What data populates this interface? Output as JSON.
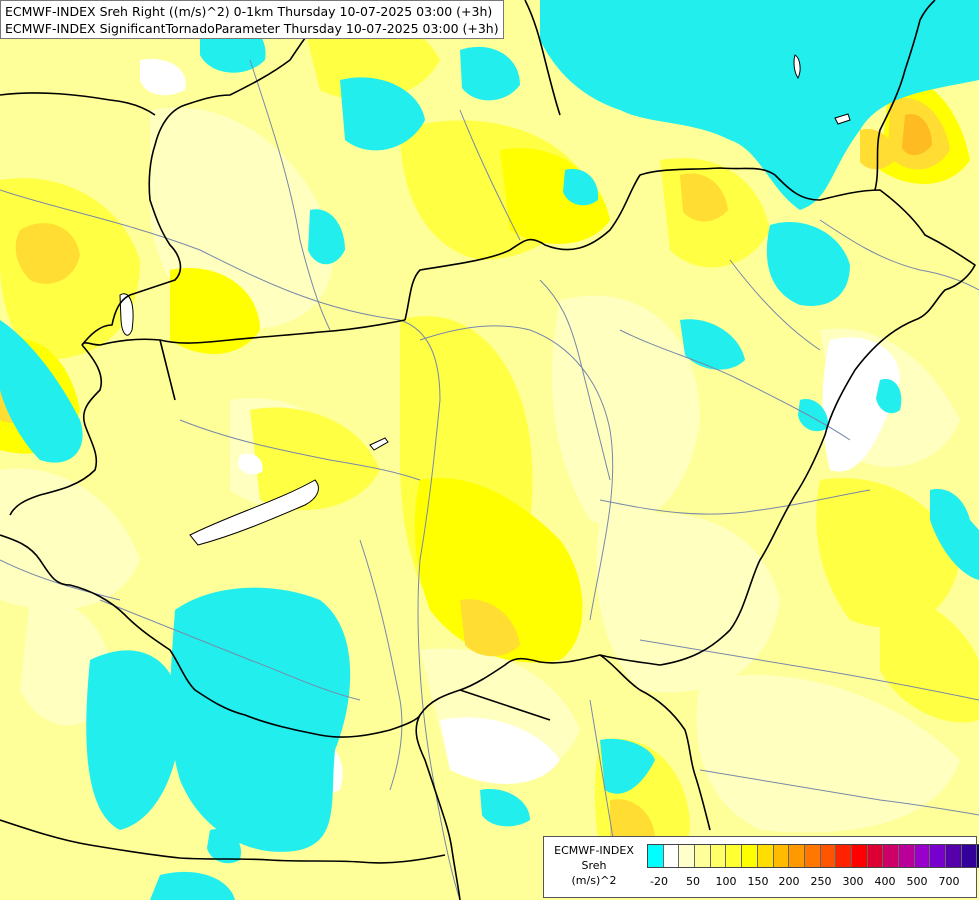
{
  "titles": {
    "line1": "ECMWF-INDEX Sreh Right ((m/s)^2) 0-1km Thursday 10-07-2025 03:00 (+3h)",
    "line2": "ECMWF-INDEX SignificantTornadoParameter Thursday 10-07-2025 03:00 (+3h)"
  },
  "legend": {
    "model": "ECMWF-INDEX",
    "parameter": "Sreh",
    "unit": "(m/s)^2",
    "swatches": [
      "#00ffff",
      "#ffffff",
      "#ffffcc",
      "#ffff99",
      "#ffff66",
      "#ffff33",
      "#ffff00",
      "#ffdd00",
      "#ffbb00",
      "#ff9900",
      "#ff7700",
      "#ff5500",
      "#ff2200",
      "#ff0000",
      "#dd0033",
      "#cc0066",
      "#bb0099",
      "#9900cc",
      "#7700cc",
      "#5500aa",
      "#330099",
      "#110066"
    ],
    "tick_labels": [
      "-20",
      "50",
      "100",
      "150",
      "200",
      "250",
      "300",
      "400",
      "500",
      "700"
    ]
  },
  "colors": {
    "cyan_negative": "#22eeee",
    "white_zero": "#ffffff",
    "pale_yellow": "#ffffbb",
    "light_yellow": "#ffff99",
    "yellow": "#ffff44",
    "bright_yellow": "#ffff00",
    "gold": "#ffdd22",
    "orange": "#ffcc33",
    "border_line": "#000000",
    "river_line": "#7788aa"
  }
}
